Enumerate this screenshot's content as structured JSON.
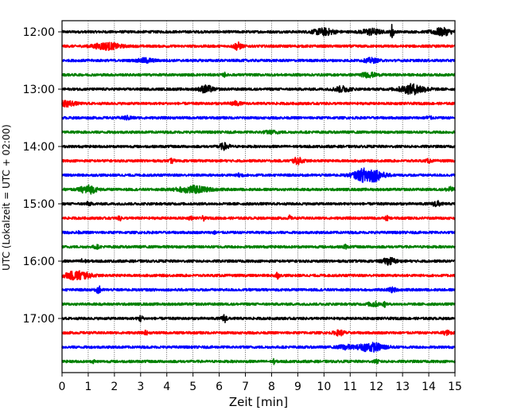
{
  "chart_data": {
    "type": "line",
    "subtype": "helicorder",
    "title": "",
    "xlabel": "Zeit  [min]",
    "ylabel": "UTC (Lokalzeit = UTC + 02:00)",
    "xlim": [
      0,
      15
    ],
    "x_ticks": [
      0,
      1,
      2,
      3,
      4,
      5,
      6,
      7,
      8,
      9,
      10,
      11,
      12,
      13,
      14,
      15
    ],
    "x_tick_labels": [
      "0",
      "1",
      "2",
      "3",
      "4",
      "5",
      "6",
      "7",
      "8",
      "9",
      "10",
      "11",
      "12",
      "13",
      "14",
      "15"
    ],
    "y_tick_labels": [
      "12:00",
      "13:00",
      "14:00",
      "15:00",
      "16:00",
      "17:00"
    ],
    "x_grid": true,
    "x_grid_style": "dotted",
    "trace_colors": [
      "#000000",
      "#ff0000",
      "#0000ff",
      "#008000"
    ],
    "traces": [
      {
        "start": "12:00",
        "color": "#000000",
        "bursts": [
          {
            "x": 10.0,
            "amp": 0.55,
            "w": 0.4
          },
          {
            "x": 11.8,
            "amp": 0.5,
            "w": 0.35
          },
          {
            "x": 12.6,
            "amp": 1.4,
            "w": 0.06
          },
          {
            "x": 14.5,
            "amp": 0.6,
            "w": 0.35
          }
        ]
      },
      {
        "start": "12:15",
        "color": "#ff0000",
        "bursts": [
          {
            "x": 1.7,
            "amp": 0.55,
            "w": 0.5
          },
          {
            "x": 6.7,
            "amp": 0.6,
            "w": 0.15
          }
        ]
      },
      {
        "start": "12:30",
        "color": "#0000ff",
        "bursts": [
          {
            "x": 3.2,
            "amp": 0.35,
            "w": 0.3
          },
          {
            "x": 11.8,
            "amp": 0.35,
            "w": 0.25
          }
        ]
      },
      {
        "start": "12:45",
        "color": "#008000",
        "bursts": [
          {
            "x": 11.7,
            "amp": 0.35,
            "w": 0.3
          },
          {
            "x": 6.2,
            "amp": 0.3,
            "w": 0.05
          }
        ]
      },
      {
        "start": "13:00",
        "color": "#000000",
        "bursts": [
          {
            "x": 5.5,
            "amp": 0.6,
            "w": 0.25
          },
          {
            "x": 10.7,
            "amp": 0.45,
            "w": 0.3
          },
          {
            "x": 13.4,
            "amp": 0.8,
            "w": 0.5
          }
        ]
      },
      {
        "start": "13:15",
        "color": "#ff0000",
        "bursts": [
          {
            "x": 0.2,
            "amp": 0.45,
            "w": 0.3
          },
          {
            "x": 6.6,
            "amp": 0.3,
            "w": 0.2
          }
        ]
      },
      {
        "start": "13:30",
        "color": "#0000ff",
        "bursts": [
          {
            "x": 14.0,
            "amp": 0.3,
            "w": 0.1
          },
          {
            "x": 2.5,
            "amp": 0.25,
            "w": 0.2
          }
        ]
      },
      {
        "start": "13:45",
        "color": "#008000",
        "bursts": [
          {
            "x": 8.0,
            "amp": 0.2,
            "w": 0.3
          }
        ]
      },
      {
        "start": "14:00",
        "color": "#000000",
        "bursts": [
          {
            "x": 6.2,
            "amp": 0.5,
            "w": 0.2
          }
        ]
      },
      {
        "start": "14:15",
        "color": "#ff0000",
        "bursts": [
          {
            "x": 4.2,
            "amp": 0.35,
            "w": 0.08
          },
          {
            "x": 9.0,
            "amp": 0.5,
            "w": 0.2
          },
          {
            "x": 14.0,
            "amp": 0.25,
            "w": 0.1
          }
        ]
      },
      {
        "start": "14:30",
        "color": "#0000ff",
        "bursts": [
          {
            "x": 11.7,
            "amp": 1.3,
            "w": 0.5
          },
          {
            "x": 6.8,
            "amp": 0.35,
            "w": 0.1
          }
        ]
      },
      {
        "start": "14:45",
        "color": "#008000",
        "bursts": [
          {
            "x": 1.0,
            "amp": 0.7,
            "w": 0.3
          },
          {
            "x": 5.0,
            "amp": 0.55,
            "w": 0.6
          },
          {
            "x": 14.8,
            "amp": 0.35,
            "w": 0.15
          }
        ]
      },
      {
        "start": "15:00",
        "color": "#000000",
        "bursts": [
          {
            "x": 14.3,
            "amp": 0.45,
            "w": 0.15
          },
          {
            "x": 1.0,
            "amp": 0.25,
            "w": 0.1
          }
        ]
      },
      {
        "start": "15:15",
        "color": "#ff0000",
        "bursts": [
          {
            "x": 2.2,
            "amp": 0.45,
            "w": 0.05
          },
          {
            "x": 4.9,
            "amp": 0.4,
            "w": 0.05
          },
          {
            "x": 5.4,
            "amp": 0.35,
            "w": 0.05
          },
          {
            "x": 8.7,
            "amp": 0.4,
            "w": 0.05
          },
          {
            "x": 12.4,
            "amp": 0.4,
            "w": 0.05
          }
        ]
      },
      {
        "start": "15:30",
        "color": "#0000ff",
        "bursts": [
          {
            "x": 5.8,
            "amp": 0.25,
            "w": 0.05
          },
          {
            "x": 0.6,
            "amp": 0.2,
            "w": 0.05
          }
        ]
      },
      {
        "start": "15:45",
        "color": "#008000",
        "bursts": [
          {
            "x": 1.3,
            "amp": 0.3,
            "w": 0.1
          },
          {
            "x": 10.8,
            "amp": 0.3,
            "w": 0.08
          }
        ]
      },
      {
        "start": "16:00",
        "color": "#000000",
        "bursts": [
          {
            "x": 0.8,
            "amp": 0.35,
            "w": 0.1
          },
          {
            "x": 12.5,
            "amp": 0.55,
            "w": 0.25
          }
        ]
      },
      {
        "start": "16:15",
        "color": "#ff0000",
        "bursts": [
          {
            "x": 0.6,
            "amp": 0.75,
            "w": 0.45
          },
          {
            "x": 8.2,
            "amp": 0.55,
            "w": 0.08
          }
        ]
      },
      {
        "start": "16:30",
        "color": "#0000ff",
        "bursts": [
          {
            "x": 1.4,
            "amp": 0.55,
            "w": 0.1
          },
          {
            "x": 12.6,
            "amp": 0.35,
            "w": 0.15
          }
        ]
      },
      {
        "start": "16:45",
        "color": "#008000",
        "bursts": [
          {
            "x": 11.9,
            "amp": 0.4,
            "w": 0.2
          },
          {
            "x": 12.3,
            "amp": 0.45,
            "w": 0.05
          }
        ]
      },
      {
        "start": "17:00",
        "color": "#000000",
        "bursts": [
          {
            "x": 3.0,
            "amp": 0.5,
            "w": 0.08
          },
          {
            "x": 6.2,
            "amp": 0.6,
            "w": 0.1
          }
        ]
      },
      {
        "start": "17:15",
        "color": "#ff0000",
        "bursts": [
          {
            "x": 3.2,
            "amp": 0.4,
            "w": 0.05
          },
          {
            "x": 10.6,
            "amp": 0.4,
            "w": 0.2
          },
          {
            "x": 14.7,
            "amp": 0.3,
            "w": 0.15
          }
        ]
      },
      {
        "start": "17:30",
        "color": "#0000ff",
        "bursts": [
          {
            "x": 11.8,
            "amp": 0.7,
            "w": 0.5
          },
          {
            "x": 10.8,
            "amp": 0.35,
            "w": 0.25
          }
        ]
      },
      {
        "start": "17:45",
        "color": "#008000",
        "bursts": [
          {
            "x": 8.1,
            "amp": 0.35,
            "w": 0.05
          },
          {
            "x": 1.2,
            "amp": 0.25,
            "w": 0.05
          },
          {
            "x": 12.0,
            "amp": 0.25,
            "w": 0.08
          }
        ]
      }
    ]
  }
}
